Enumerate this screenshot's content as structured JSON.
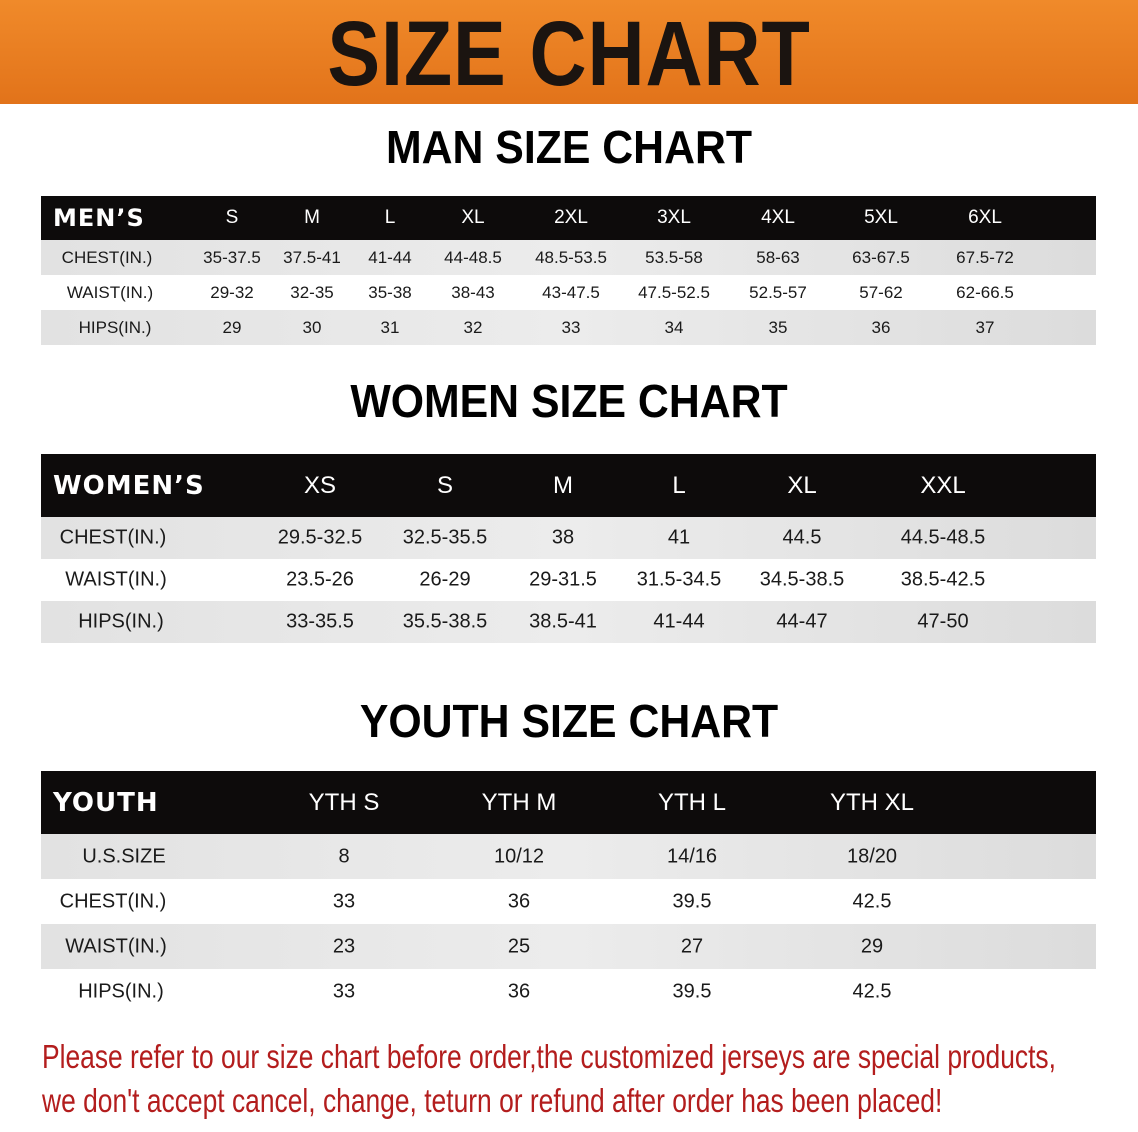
{
  "banner_title": "SIZE CHART",
  "men": {
    "title": "MAN SIZE CHART",
    "header_label": "MEN’S",
    "sizes": [
      "S",
      "M",
      "L",
      "XL",
      "2XL",
      "3XL",
      "4XL",
      "5XL",
      "6XL"
    ],
    "rows": [
      {
        "label": "CHEST(IN.)",
        "values": [
          "35-37.5",
          "37.5-41",
          "41-44",
          "44-48.5",
          "48.5-53.5",
          "53.5-58",
          "58-63",
          "63-67.5",
          "67.5-72"
        ]
      },
      {
        "label": "WAIST(IN.)",
        "values": [
          "29-32",
          "32-35",
          "35-38",
          "38-43",
          "43-47.5",
          "47.5-52.5",
          "52.5-57",
          "57-62",
          "62-66.5"
        ]
      },
      {
        "label": "HIPS(IN.)",
        "values": [
          "29",
          "30",
          "31",
          "32",
          "33",
          "34",
          "35",
          "36",
          "37"
        ]
      }
    ]
  },
  "women": {
    "title": "WOMEN SIZE CHART",
    "header_label": "WOMEN’S",
    "sizes": [
      "XS",
      "S",
      "M",
      "L",
      "XL",
      "XXL"
    ],
    "rows": [
      {
        "label": "CHEST(IN.)",
        "values": [
          "29.5-32.5",
          "32.5-35.5",
          "38",
          "41",
          "44.5",
          "44.5-48.5"
        ]
      },
      {
        "label": "WAIST(IN.)",
        "values": [
          "23.5-26",
          "26-29",
          "29-31.5",
          "31.5-34.5",
          "34.5-38.5",
          "38.5-42.5"
        ]
      },
      {
        "label": "HIPS(IN.)",
        "values": [
          "33-35.5",
          "35.5-38.5",
          "38.5-41",
          "41-44",
          "44-47",
          "47-50"
        ]
      }
    ]
  },
  "youth": {
    "title": "YOUTH SIZE CHART",
    "header_label": "YOUTH",
    "sizes": [
      "YTH S",
      "YTH M",
      "YTH L",
      "YTH XL"
    ],
    "rows": [
      {
        "label": "U.S.SIZE",
        "values": [
          "8",
          "10/12",
          "14/16",
          "18/20"
        ]
      },
      {
        "label": "CHEST(IN.)",
        "values": [
          "33",
          "36",
          "39.5",
          "42.5"
        ]
      },
      {
        "label": "WAIST(IN.)",
        "values": [
          "23",
          "25",
          "27",
          "29"
        ]
      },
      {
        "label": "HIPS(IN.)",
        "values": [
          "33",
          "36",
          "39.5",
          "42.5"
        ]
      }
    ]
  },
  "notice": [
    "Please refer to our size chart before order,the customized jerseys are special products,",
    "we don't accept cancel, change, teturn or refund after order has been placed!"
  ],
  "colors": {
    "banner": "#e8781c",
    "header": "#0d0b0b",
    "notice": "#b31d1d"
  }
}
